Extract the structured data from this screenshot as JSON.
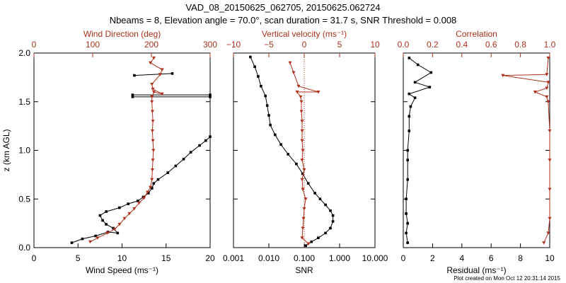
{
  "title_line1": "VAD_08_20150625_062705, 20150625.062724",
  "title_line2": "Nbeams = 8, Elevation angle = 70.0°, scan duration = 31.7 s, SNR Threshold = 0.008",
  "footer": "Plot created on Mon Oct 12 20:31:14 2015",
  "colors": {
    "black": "#000000",
    "red": "#b0301c"
  },
  "chart_data": [
    {
      "type": "line",
      "ylabel": "z (km AGL)",
      "ylim": [
        0,
        2.0
      ],
      "yticks": [
        "0.0",
        "0.5",
        "1.0",
        "1.5",
        "2.0"
      ],
      "bottom_axis": {
        "label": "Wind Speed (ms⁻¹)",
        "xlim": [
          0,
          20
        ],
        "ticks": [
          "0",
          "5",
          "10",
          "15",
          "20"
        ],
        "series": {
          "name": "Wind Speed",
          "points": [
            [
              4.3,
              0.05
            ],
            [
              5.5,
              0.09
            ],
            [
              7.0,
              0.12
            ],
            [
              8.4,
              0.16
            ],
            [
              9.5,
              0.15
            ],
            [
              9.0,
              0.2
            ],
            [
              8.2,
              0.24
            ],
            [
              7.8,
              0.28
            ],
            [
              7.5,
              0.33
            ],
            [
              8.2,
              0.37
            ],
            [
              9.7,
              0.41
            ],
            [
              10.7,
              0.45
            ],
            [
              11.8,
              0.48
            ],
            [
              12.4,
              0.52
            ],
            [
              13.0,
              0.56
            ],
            [
              13.4,
              0.61
            ],
            [
              13.6,
              0.66
            ],
            [
              14.1,
              0.7
            ],
            [
              15.2,
              0.77
            ],
            [
              16.1,
              0.84
            ],
            [
              17.0,
              0.91
            ],
            [
              17.8,
              0.98
            ],
            [
              18.8,
              1.05
            ],
            [
              19.5,
              1.1
            ],
            [
              20.0,
              1.14
            ]
          ],
          "upper": [
            [
              11.2,
              1.57
            ],
            [
              20.0,
              1.57
            ],
            [
              20.0,
              1.55
            ],
            [
              11.2,
              1.55
            ]
          ],
          "top_points": [
            [
              11.4,
              1.77
            ],
            [
              15.7,
              1.79
            ]
          ]
        }
      },
      "top_axis": {
        "label": "Wind Direction (deg)",
        "xlim": [
          0,
          360
        ],
        "ticks": [
          "0",
          "100",
          "200",
          "300"
        ],
        "series": {
          "name": "Wind Direction",
          "points": [
            [
              115,
              0.06
            ],
            [
              130,
              0.1
            ],
            [
              150,
              0.15
            ],
            [
              165,
              0.19
            ],
            [
              175,
              0.24
            ],
            [
              185,
              0.3
            ],
            [
              195,
              0.35
            ],
            [
              205,
              0.4
            ],
            [
              215,
              0.46
            ],
            [
              225,
              0.51
            ],
            [
              232,
              0.57
            ],
            [
              238,
              0.62
            ],
            [
              241,
              0.7
            ],
            [
              242,
              0.8
            ],
            [
              243,
              0.9
            ],
            [
              244,
              1.0
            ],
            [
              243,
              1.1
            ],
            [
              242,
              1.2
            ],
            [
              243,
              1.3
            ],
            [
              242,
              1.4
            ],
            [
              241,
              1.5
            ],
            [
              241,
              1.55
            ],
            [
              245,
              1.6
            ],
            [
              262,
              1.58
            ],
            [
              243,
              1.63
            ],
            [
              241,
              1.68
            ],
            [
              258,
              1.78
            ],
            [
              262,
              1.83
            ],
            [
              238,
              1.9
            ],
            [
              245,
              1.95
            ]
          ]
        }
      }
    },
    {
      "type": "line",
      "bottom_axis": {
        "label": "SNR",
        "scale": "log",
        "xlim": [
          0.001,
          10
        ],
        "ticks": [
          "0.001",
          "0.010",
          "0.100",
          "1.000",
          "10.000"
        ],
        "series": {
          "name": "SNR",
          "points": [
            [
              0.11,
              0.02
            ],
            [
              0.16,
              0.06
            ],
            [
              0.25,
              0.1
            ],
            [
              0.4,
              0.15
            ],
            [
              0.55,
              0.2
            ],
            [
              0.65,
              0.27
            ],
            [
              0.65,
              0.33
            ],
            [
              0.55,
              0.38
            ],
            [
              0.4,
              0.44
            ],
            [
              0.28,
              0.5
            ],
            [
              0.2,
              0.56
            ],
            [
              0.13,
              0.66
            ],
            [
              0.09,
              0.76
            ],
            [
              0.06,
              0.86
            ],
            [
              0.035,
              0.96
            ],
            [
              0.022,
              1.06
            ],
            [
              0.015,
              1.16
            ],
            [
              0.011,
              1.26
            ],
            [
              0.01,
              1.36
            ],
            [
              0.009,
              1.46
            ],
            [
              0.008,
              1.56
            ],
            [
              0.006,
              1.66
            ],
            [
              0.005,
              1.76
            ],
            [
              0.004,
              1.86
            ],
            [
              0.003,
              1.96
            ]
          ]
        }
      },
      "top_axis": {
        "label": "Vertical velocity (ms⁻¹)",
        "xlim": [
          -10,
          10
        ],
        "ticks": [
          "−10",
          "−5",
          "0",
          "5",
          "10"
        ],
        "series": {
          "name": "Vertical velocity",
          "points": [
            [
              0.6,
              0.04
            ],
            [
              -0.3,
              0.1
            ],
            [
              -0.2,
              0.2
            ],
            [
              -0.1,
              0.3
            ],
            [
              0.0,
              0.4
            ],
            [
              0.2,
              0.5
            ],
            [
              -0.2,
              0.6
            ],
            [
              -0.3,
              0.7
            ],
            [
              0.0,
              0.8
            ],
            [
              -0.3,
              0.9
            ],
            [
              -0.2,
              1.0
            ],
            [
              -0.3,
              1.1
            ],
            [
              -0.3,
              1.2
            ],
            [
              -0.3,
              1.3
            ],
            [
              -0.4,
              1.4
            ],
            [
              -0.4,
              1.5
            ],
            [
              -0.5,
              1.55
            ],
            [
              -1.0,
              1.6
            ],
            [
              2.0,
              1.6
            ],
            [
              -0.8,
              1.66
            ],
            [
              -1.5,
              1.8
            ],
            [
              -2.0,
              1.9
            ]
          ]
        }
      }
    },
    {
      "type": "line",
      "bottom_axis": {
        "label": "Residual (ms⁻¹)",
        "xlim": [
          0,
          10
        ],
        "ticks": [
          "0",
          "2",
          "4",
          "6",
          "8",
          "10"
        ],
        "series": {
          "name": "Residual",
          "points": [
            [
              0.3,
              0.05
            ],
            [
              0.2,
              0.15
            ],
            [
              0.3,
              0.25
            ],
            [
              0.2,
              0.35
            ],
            [
              0.2,
              0.5
            ],
            [
              0.3,
              0.7
            ],
            [
              0.3,
              0.9
            ],
            [
              0.3,
              1.0
            ],
            [
              0.4,
              1.2
            ],
            [
              0.4,
              1.35
            ],
            [
              0.5,
              1.45
            ],
            [
              0.8,
              1.54
            ],
            [
              0.4,
              1.58
            ],
            [
              1.8,
              1.65
            ],
            [
              0.8,
              1.7
            ],
            [
              1.9,
              1.8
            ],
            [
              1.0,
              1.88
            ],
            [
              0.4,
              1.95
            ]
          ]
        }
      },
      "top_axis": {
        "label": "Correlation",
        "xlim": [
          0,
          1
        ],
        "ticks": [
          "0.0",
          "0.2",
          "0.4",
          "0.6",
          "0.8",
          "1.0"
        ],
        "series": {
          "name": "Correlation",
          "points": [
            [
              0.96,
              0.05
            ],
            [
              0.99,
              0.15
            ],
            [
              1.0,
              0.3
            ],
            [
              1.0,
              0.6
            ],
            [
              1.0,
              0.9
            ],
            [
              1.0,
              1.2
            ],
            [
              0.99,
              1.5
            ],
            [
              0.98,
              1.55
            ],
            [
              0.9,
              1.6
            ],
            [
              0.98,
              1.64
            ],
            [
              0.99,
              1.7
            ],
            [
              0.68,
              1.77
            ],
            [
              0.98,
              1.78
            ],
            [
              0.99,
              1.95
            ]
          ]
        }
      }
    }
  ]
}
